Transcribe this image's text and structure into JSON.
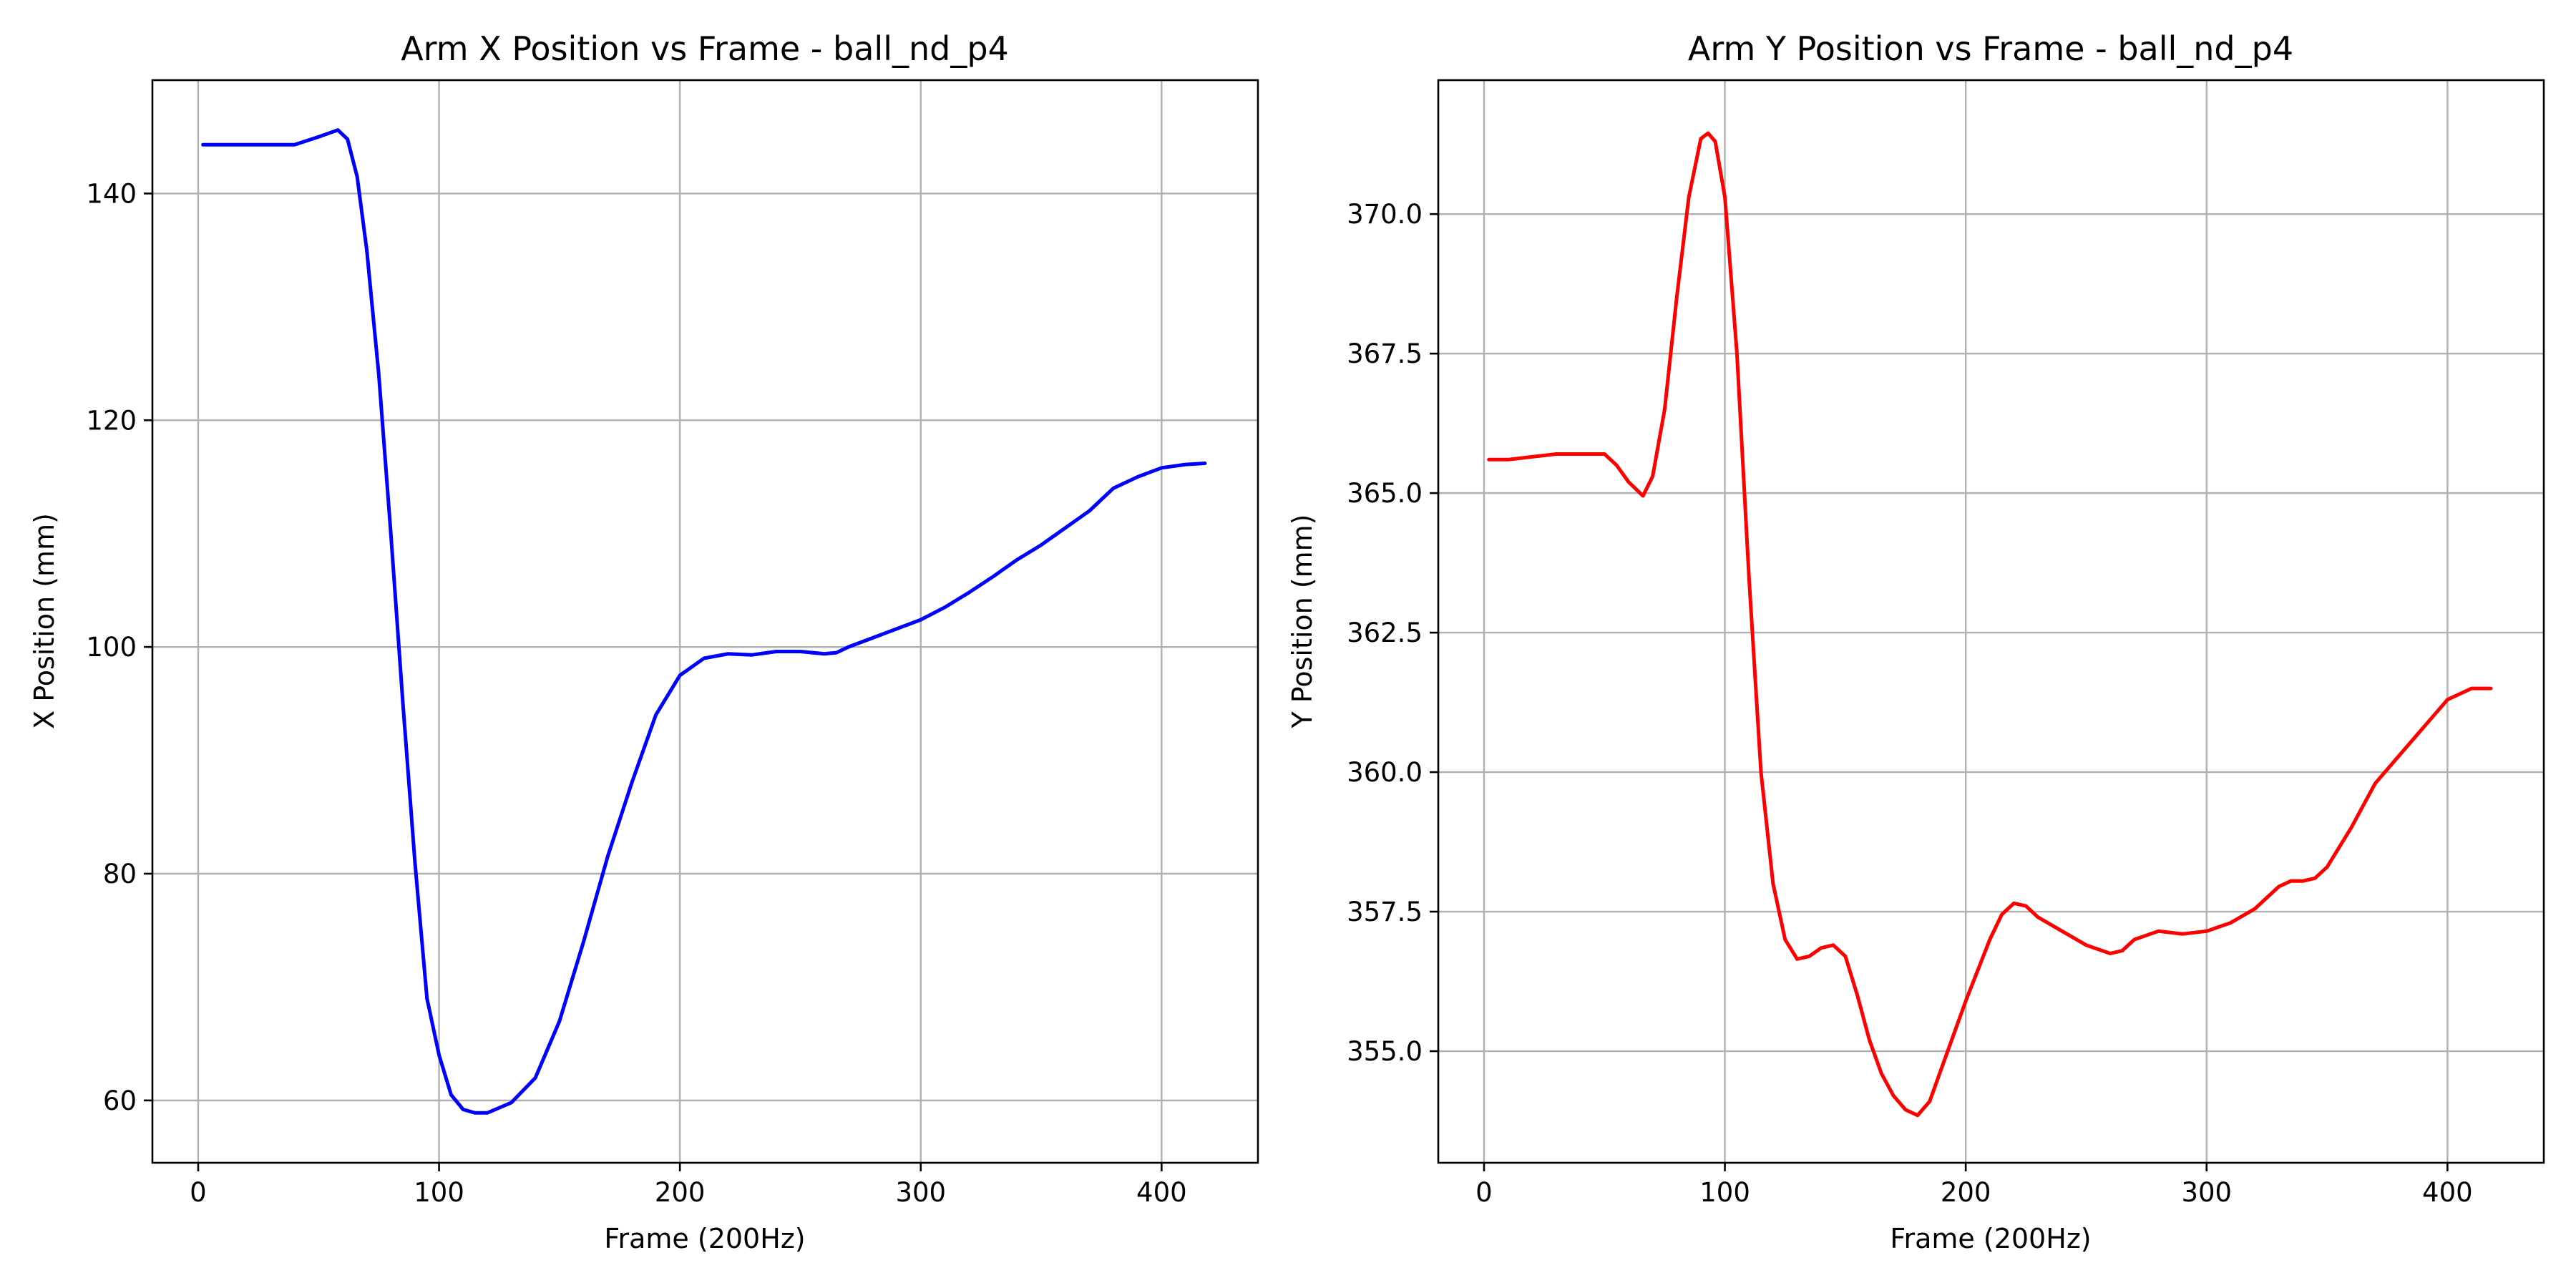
{
  "chart_data": [
    {
      "type": "line",
      "title": "Arm X Position vs Frame - ball_nd_p4",
      "xlabel": "Frame (200Hz)",
      "ylabel": "X Position (mm)",
      "xlim": [
        -19,
        440
      ],
      "ylim": [
        54.5,
        150
      ],
      "xticks": [
        0,
        100,
        200,
        300,
        400
      ],
      "yticks": [
        60,
        80,
        100,
        120,
        140
      ],
      "ytick_labels": [
        "60",
        "80",
        "100",
        "120",
        "140"
      ],
      "grid": true,
      "series": [
        {
          "color": "#0000ff",
          "x": [
            2,
            20,
            40,
            50,
            58,
            62,
            66,
            70,
            75,
            80,
            85,
            90,
            95,
            100,
            105,
            110,
            115,
            120,
            130,
            140,
            150,
            160,
            170,
            180,
            190,
            200,
            210,
            220,
            230,
            240,
            250,
            260,
            265,
            270,
            280,
            290,
            300,
            310,
            320,
            330,
            340,
            350,
            360,
            370,
            380,
            390,
            400,
            410,
            418
          ],
          "y": [
            144.3,
            144.3,
            144.3,
            145.0,
            145.6,
            144.8,
            141.5,
            135.0,
            124.0,
            110.0,
            95.0,
            81.0,
            69.0,
            64.0,
            60.5,
            59.2,
            58.9,
            58.9,
            59.8,
            62.0,
            67.0,
            74.0,
            81.5,
            88.0,
            94.0,
            97.5,
            99.0,
            99.4,
            99.3,
            99.6,
            99.6,
            99.4,
            99.5,
            100.0,
            100.8,
            101.6,
            102.4,
            103.5,
            104.8,
            106.2,
            107.7,
            109.0,
            110.5,
            112.0,
            114.0,
            115.0,
            115.8,
            116.1,
            116.2
          ]
        }
      ]
    },
    {
      "type": "line",
      "title": "Arm Y Position vs Frame - ball_nd_p4",
      "xlabel": "Frame (200Hz)",
      "ylabel": "Y Position (mm)",
      "xlim": [
        -19,
        440
      ],
      "ylim": [
        353.0,
        372.4
      ],
      "xticks": [
        0,
        100,
        200,
        300,
        400
      ],
      "yticks": [
        355.0,
        357.5,
        360.0,
        362.5,
        365.0,
        367.5,
        370.0
      ],
      "ytick_labels": [
        "355.0",
        "357.5",
        "360.0",
        "362.5",
        "365.0",
        "367.5",
        "370.0"
      ],
      "grid": true,
      "series": [
        {
          "color": "#ff0000",
          "x": [
            2,
            10,
            20,
            30,
            40,
            50,
            55,
            60,
            66,
            70,
            75,
            80,
            85,
            90,
            93,
            96,
            100,
            105,
            110,
            115,
            120,
            125,
            130,
            135,
            140,
            145,
            150,
            155,
            160,
            165,
            170,
            175,
            180,
            185,
            190,
            200,
            210,
            215,
            220,
            225,
            230,
            240,
            250,
            260,
            265,
            270,
            280,
            290,
            300,
            310,
            320,
            330,
            335,
            340,
            345,
            350,
            360,
            370,
            380,
            390,
            400,
            410,
            418
          ],
          "y": [
            365.6,
            365.6,
            365.65,
            365.7,
            365.7,
            365.7,
            365.5,
            365.2,
            364.95,
            365.3,
            366.5,
            368.5,
            370.3,
            371.35,
            371.45,
            371.3,
            370.3,
            367.5,
            363.5,
            360.0,
            358.0,
            357.0,
            356.65,
            356.7,
            356.85,
            356.9,
            356.7,
            356.0,
            355.2,
            354.6,
            354.2,
            353.95,
            353.85,
            354.1,
            354.7,
            355.9,
            357.0,
            357.45,
            357.65,
            357.6,
            357.4,
            357.15,
            356.9,
            356.75,
            356.8,
            357.0,
            357.15,
            357.1,
            357.15,
            357.3,
            357.55,
            357.95,
            358.05,
            358.05,
            358.1,
            358.3,
            359.0,
            359.8,
            360.3,
            360.8,
            361.3,
            361.5,
            361.5
          ]
        }
      ]
    }
  ]
}
